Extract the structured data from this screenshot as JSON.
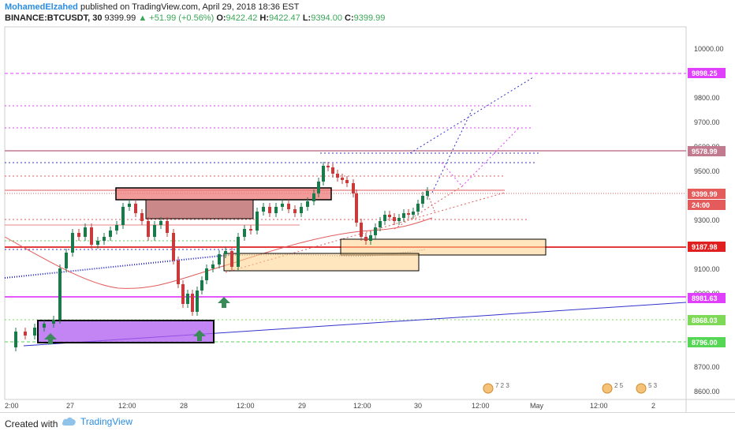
{
  "header": {
    "author": "MohamedElzahed",
    "published": "published on TradingView.com, April 29, 2018 18:36 EST",
    "symbol": "BINANCE:BTCUSDT, 30",
    "last": "9399.99",
    "change": "▲ +51.99 (+0.56%)",
    "o_label": "O:",
    "o_value": "9422.42",
    "h_label": "H:",
    "h_value": "9422.47",
    "l_label": "L:",
    "l_value": "9394.00",
    "c_label": "C:",
    "c_value": "9399.99"
  },
  "price_axis": {
    "ticks": [
      "10000.00",
      "9900.00",
      "9800.00",
      "9700.00",
      "9600.00",
      "9500.00",
      "9400.00",
      "9300.00",
      "9200.00",
      "9100.00",
      "9000.00",
      "8900.00",
      "8800.00",
      "8700.00",
      "8600.00"
    ]
  },
  "time_axis": {
    "ticks": [
      "2:00",
      "27",
      "12:00",
      "28",
      "12:00",
      "29",
      "12:00",
      "30",
      "12:00",
      "May",
      "12:00",
      "2"
    ]
  },
  "price_tags": [
    {
      "text": "9898.25",
      "color": "#e040fb"
    },
    {
      "text": "9578.99",
      "color": "#c27a8f"
    },
    {
      "text": "9399.99",
      "color": "#e35b5b"
    },
    {
      "text": "24:00",
      "color": "#e35b5b"
    },
    {
      "text": "9187.98",
      "color": "#e02020"
    },
    {
      "text": "8981.63",
      "color": "#e040fb"
    },
    {
      "text": "8868.03",
      "color": "#7ed957"
    },
    {
      "text": "8796.00",
      "color": "#55d655"
    }
  ],
  "footer": {
    "created_with": "Created with",
    "brand": "TradingView"
  },
  "icons": {
    "logo": "tradingview-cloud-icon"
  }
}
